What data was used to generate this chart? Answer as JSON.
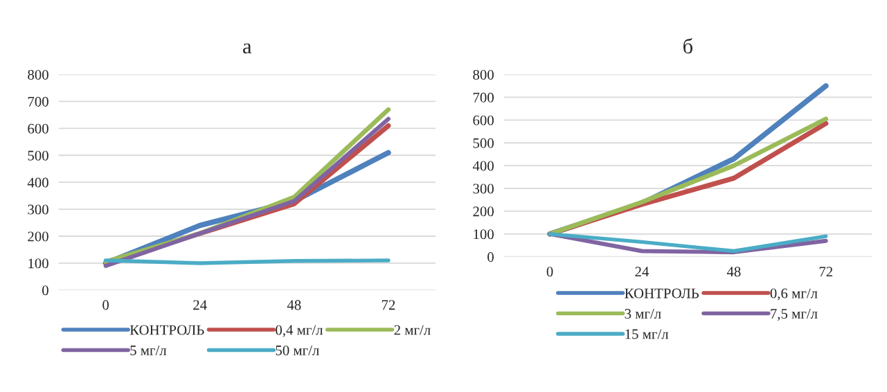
{
  "chart_data": [
    {
      "type": "line",
      "title": "а",
      "categories": [
        "0",
        "24",
        "48",
        "72"
      ],
      "ylim": [
        0,
        800
      ],
      "yticks": [
        0,
        100,
        200,
        300,
        400,
        500,
        600,
        700,
        800
      ],
      "grid": "y",
      "legend": "bottom",
      "marker": "none",
      "line_style": "solid",
      "series": [
        {
          "name": "КОНТРОЛЬ",
          "color": "#4f81bd",
          "values": [
            100,
            240,
            330,
            510
          ]
        },
        {
          "name": "0,4 мг/л",
          "color": "#c0504d",
          "values": [
            100,
            210,
            320,
            610
          ]
        },
        {
          "name": "2 мг/л",
          "color": "#9bbb59",
          "values": [
            105,
            210,
            345,
            670
          ]
        },
        {
          "name": "5 мг/л",
          "color": "#8064a2",
          "values": [
            90,
            210,
            330,
            635
          ]
        },
        {
          "name": "50 мг/л",
          "color": "#4bacc6",
          "values": [
            110,
            100,
            108,
            110
          ]
        }
      ]
    },
    {
      "type": "line",
      "title": "б",
      "categories": [
        "0",
        "24",
        "48",
        "72"
      ],
      "ylim": [
        0,
        800
      ],
      "yticks": [
        0,
        100,
        200,
        300,
        400,
        500,
        600,
        700,
        800
      ],
      "grid": "y",
      "legend": "bottom",
      "marker": "none",
      "line_style": "solid",
      "series": [
        {
          "name": "КОНТРОЛЬ",
          "color": "#4f81bd",
          "values": [
            100,
            235,
            430,
            750
          ]
        },
        {
          "name": "0,6 мг/л",
          "color": "#c0504d",
          "values": [
            100,
            230,
            345,
            585
          ]
        },
        {
          "name": "3 мг/л",
          "color": "#9bbb59",
          "values": [
            100,
            240,
            400,
            605
          ]
        },
        {
          "name": "7,5 мг/л",
          "color": "#8064a2",
          "values": [
            100,
            25,
            20,
            70
          ]
        },
        {
          "name": "15 мг/л",
          "color": "#4bacc6",
          "values": [
            100,
            65,
            25,
            90
          ]
        }
      ]
    }
  ]
}
